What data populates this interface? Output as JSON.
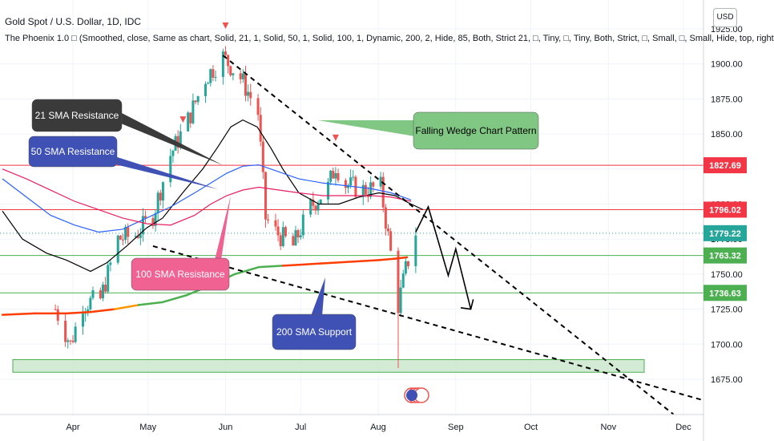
{
  "header": {
    "title": "Gold Spot / U.S. Dollar, 1D, IDC",
    "study": "The Phoenix 1.0 □ (Smoothed, close, Same as chart, Solid, 21, 1, Solid, 50, 1, Solid, 100, 1, Dynamic, 200, 2, Hide, 85, Both, Strict 21, □, Tiny, □, Tiny, Both, Strict, □, Small, □, Small, Hide, top, right",
    "currency": "USD"
  },
  "colors": {
    "up": "#26a69a",
    "down": "#ef5350",
    "sma21": "#000000",
    "sma50": "#2962ff",
    "sma100": "#e91e63",
    "sma200_up": "#4caf50",
    "sma200_down": "#ff3d00",
    "red_level": "#f23645",
    "green_level": "#4caf50"
  },
  "chart_data": {
    "type": "candlestick",
    "symbol": "XAUUSD",
    "timeframe": "1D",
    "ylim": [
      1655,
      1935
    ],
    "y_ticks": [
      1675,
      1700,
      1725,
      1750,
      1775,
      1800,
      1825,
      1850,
      1875,
      1900,
      1925
    ],
    "x_ticks": [
      "Apr",
      "May",
      "Jun",
      "Jul",
      "Aug",
      "Sep",
      "Oct",
      "Nov",
      "Dec"
    ],
    "price_labels": [
      {
        "value": "1827.69",
        "color": "#f23645"
      },
      {
        "value": "1796.02",
        "color": "#f23645"
      },
      {
        "value": "1779.22",
        "color": "#26a69a"
      },
      {
        "value": "1763.32",
        "color": "#4caf50"
      },
      {
        "value": "1736.63",
        "color": "#4caf50"
      }
    ],
    "horizontal_levels": [
      1827.69,
      1796.02,
      1763.32,
      1736.63
    ],
    "current_price": 1779.22,
    "support_zone": [
      1680,
      1689
    ],
    "annotations": [
      {
        "text": "21 SMA Resistance",
        "color": "#3a3a3a"
      },
      {
        "text": "50 SMA Resistance",
        "color": "#3f51b5"
      },
      {
        "text": "100 SMA Resistance",
        "color": "#f06292"
      },
      {
        "text": "200 SMA Support",
        "color": "#3f51b5"
      },
      {
        "text": "Falling Wedge Chart Pattern",
        "color": "#81c784"
      }
    ],
    "close_path": [
      [
        "2021-03-25",
        1725
      ],
      [
        "2021-03-31",
        1700
      ],
      [
        "2021-04-05",
        1729
      ],
      [
        "2021-04-12",
        1732
      ],
      [
        "2021-04-19",
        1775
      ],
      [
        "2021-04-26",
        1778
      ],
      [
        "2021-05-03",
        1792
      ],
      [
        "2021-05-10",
        1835
      ],
      [
        "2021-05-17",
        1860
      ],
      [
        "2021-05-24",
        1890
      ],
      [
        "2021-05-31",
        1905
      ],
      [
        "2021-06-07",
        1890
      ],
      [
        "2021-06-10",
        1880
      ],
      [
        "2021-06-14",
        1865
      ],
      [
        "2021-06-17",
        1790
      ],
      [
        "2021-06-21",
        1780
      ],
      [
        "2021-06-28",
        1770
      ],
      [
        "2021-07-05",
        1798
      ],
      [
        "2021-07-12",
        1812
      ],
      [
        "2021-07-15",
        1828
      ],
      [
        "2021-07-19",
        1814
      ],
      [
        "2021-07-26",
        1810
      ],
      [
        "2021-08-02",
        1812
      ],
      [
        "2021-08-06",
        1765
      ],
      [
        "2021-08-09",
        1728
      ],
      [
        "2021-08-12",
        1753
      ],
      [
        "2021-08-16",
        1780
      ]
    ],
    "series": [
      {
        "name": "21 SMA",
        "values": [
          [
            0,
            1795
          ],
          [
            25,
            1775
          ],
          [
            55,
            1765
          ],
          [
            80,
            1760
          ],
          [
            110,
            1752
          ],
          [
            130,
            1758
          ],
          [
            155,
            1770
          ],
          [
            180,
            1783
          ],
          [
            200,
            1790
          ],
          [
            225,
            1808
          ],
          [
            250,
            1825
          ],
          [
            268,
            1840
          ],
          [
            285,
            1855
          ],
          [
            300,
            1860
          ],
          [
            318,
            1855
          ],
          [
            335,
            1840
          ],
          [
            350,
            1825
          ],
          [
            370,
            1808
          ],
          [
            395,
            1800
          ],
          [
            420,
            1800
          ],
          [
            445,
            1805
          ],
          [
            470,
            1808
          ],
          [
            490,
            1806
          ],
          [
            510,
            1800
          ],
          [
            525,
            1796
          ]
        ]
      },
      {
        "name": "50 SMA",
        "values": [
          [
            0,
            1818
          ],
          [
            30,
            1805
          ],
          [
            60,
            1792
          ],
          [
            90,
            1785
          ],
          [
            120,
            1780
          ],
          [
            150,
            1782
          ],
          [
            180,
            1790
          ],
          [
            210,
            1798
          ],
          [
            240,
            1808
          ],
          [
            260,
            1815
          ],
          [
            280,
            1822
          ],
          [
            300,
            1827
          ],
          [
            320,
            1828
          ],
          [
            345,
            1823
          ],
          [
            370,
            1818
          ],
          [
            400,
            1815
          ],
          [
            430,
            1813
          ],
          [
            460,
            1811
          ],
          [
            485,
            1808
          ],
          [
            510,
            1803
          ]
        ]
      },
      {
        "name": "100 SMA",
        "values": [
          [
            0,
            1825
          ],
          [
            30,
            1818
          ],
          [
            60,
            1810
          ],
          [
            90,
            1802
          ],
          [
            120,
            1796
          ],
          [
            150,
            1790
          ],
          [
            180,
            1786
          ],
          [
            210,
            1785
          ],
          [
            240,
            1792
          ],
          [
            260,
            1800
          ],
          [
            280,
            1806
          ],
          [
            300,
            1810
          ],
          [
            320,
            1812
          ],
          [
            345,
            1810
          ],
          [
            370,
            1808
          ],
          [
            400,
            1806
          ],
          [
            430,
            1806
          ],
          [
            460,
            1806
          ],
          [
            485,
            1805
          ],
          [
            510,
            1802
          ]
        ]
      },
      {
        "name": "200 SMA",
        "values": [
          [
            0,
            1721
          ],
          [
            40,
            1722
          ],
          [
            80,
            1722
          ],
          [
            110,
            1723
          ],
          [
            140,
            1725
          ],
          [
            170,
            1728
          ],
          [
            200,
            1730
          ],
          [
            230,
            1735
          ],
          [
            260,
            1742
          ],
          [
            290,
            1750
          ],
          [
            320,
            1755
          ],
          [
            350,
            1756
          ],
          [
            380,
            1757
          ],
          [
            410,
            1758
          ],
          [
            440,
            1759
          ],
          [
            470,
            1760
          ],
          [
            490,
            1761
          ],
          [
            505,
            1762
          ]
        ]
      }
    ]
  }
}
